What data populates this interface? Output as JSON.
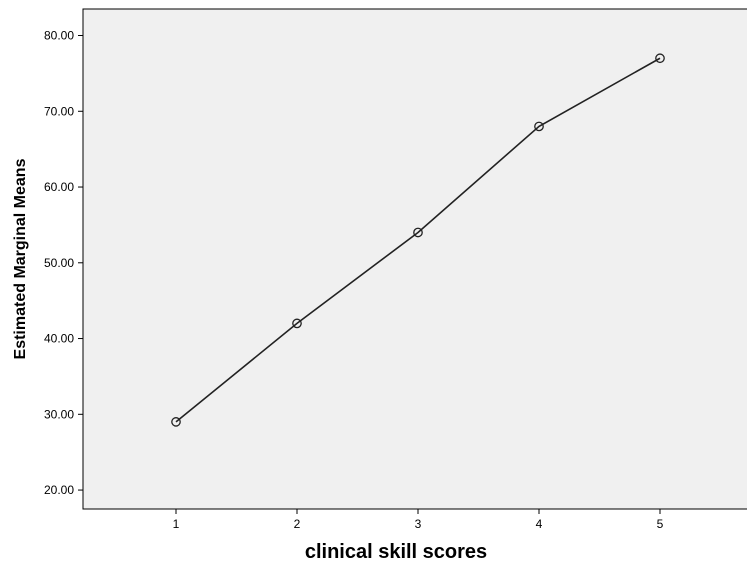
{
  "chart_data": {
    "type": "line",
    "title": "",
    "xlabel": "clinical skill scores",
    "ylabel": "Estimated Marginal Means",
    "categories": [
      "1",
      "2",
      "3",
      "4",
      "5"
    ],
    "series": [
      {
        "values": [
          29,
          42,
          54,
          68,
          77
        ]
      }
    ],
    "yticks": [
      "20.00",
      "30.00",
      "40.00",
      "50.00",
      "60.00",
      "70.00",
      "80.00"
    ],
    "ylim": [
      17.5,
      83.5
    ],
    "grid": false,
    "legend": "none",
    "colors": {
      "line": "#222222",
      "plot_background": "#f0f0f0"
    }
  }
}
